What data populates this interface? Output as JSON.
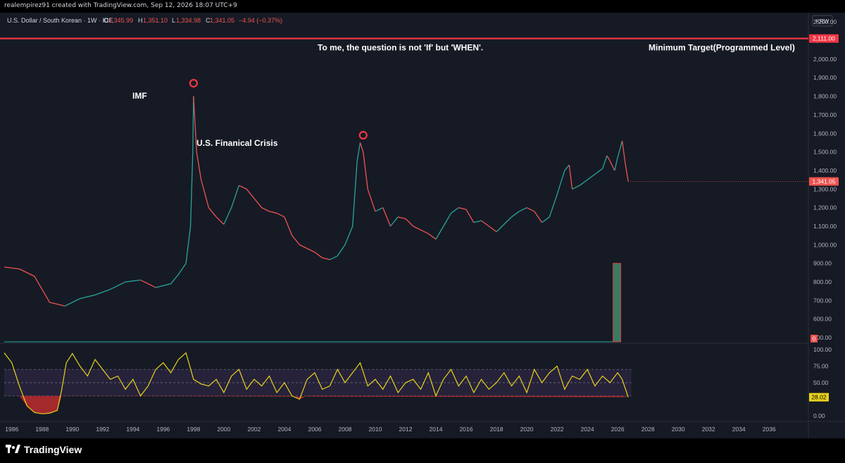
{
  "header": {
    "creator": "realempirez91 created with TradingView.com, Sep 12, 2026 18:07 UTC+9"
  },
  "legend": {
    "symbol": "U.S. Dollar / South Korean · 1W · ICE",
    "o_label": "O",
    "o_value": "1,345.99",
    "h_label": "H",
    "h_value": "1,351.10",
    "l_label": "L",
    "l_value": "1,334.98",
    "c_label": "C",
    "c_value": "1,341.05",
    "change": "−4.94 (−0.37%)"
  },
  "currency_badge": "KRW",
  "footer": {
    "brand": "TradingView"
  },
  "colors": {
    "up": "#26a69a",
    "down": "#ef5350",
    "target_line": "#f23645",
    "rsi_line": "#e8d21d",
    "rsi_band": "#2a2440",
    "background": "#161a25"
  },
  "chart_data": [
    {
      "type": "line",
      "name": "price",
      "price_axis": {
        "ticks": [
          "2,200.00",
          "2,100.00",
          "2,000.00",
          "1,900.00",
          "1,800.00",
          "1,700.00",
          "1,600.00",
          "1,500.00",
          "1,400.00",
          "1,300.00",
          "1,200.00",
          "1,100.00",
          "1,000.00",
          "900.00",
          "800.00",
          "700.00",
          "600.00",
          "500.00"
        ],
        "ylim": [
          470,
          2250
        ]
      },
      "time_axis": {
        "ticks": [
          "1986",
          "1988",
          "1990",
          "1992",
          "1994",
          "1996",
          "1998",
          "2000",
          "2002",
          "2004",
          "2006",
          "2008",
          "2010",
          "2012",
          "2014",
          "2016",
          "2018",
          "2020",
          "2022",
          "2024",
          "2026",
          "2028",
          "2030",
          "2032",
          "2034",
          "2036"
        ],
        "xlim": [
          1985.5,
          2038.5
        ]
      },
      "x": [
        1985.5,
        1986.5,
        1987.5,
        1988.0,
        1988.5,
        1989.5,
        1990.5,
        1991.5,
        1992.5,
        1993.5,
        1994.5,
        1995.5,
        1996.5,
        1997.0,
        1997.5,
        1997.8,
        1997.95,
        1998.0,
        1998.2,
        1998.5,
        1999.0,
        1999.5,
        2000.0,
        2000.5,
        2001.0,
        2001.5,
        2002.0,
        2002.5,
        2003.0,
        2003.5,
        2004.0,
        2004.5,
        2005.0,
        2005.5,
        2006.0,
        2006.5,
        2007.0,
        2007.5,
        2008.0,
        2008.5,
        2008.8,
        2009.0,
        2009.2,
        2009.5,
        2010.0,
        2010.5,
        2011.0,
        2011.5,
        2012.0,
        2012.5,
        2013.0,
        2013.5,
        2014.0,
        2014.5,
        2015.0,
        2015.5,
        2016.0,
        2016.5,
        2017.0,
        2017.5,
        2018.0,
        2018.5,
        2019.0,
        2019.5,
        2020.0,
        2020.5,
        2021.0,
        2021.5,
        2022.0,
        2022.5,
        2022.8,
        2023.0,
        2023.5,
        2024.0,
        2024.5,
        2025.0,
        2025.3,
        2025.5,
        2025.8,
        2026.0,
        2026.3,
        2026.5,
        2026.7
      ],
      "values": [
        880,
        870,
        830,
        760,
        690,
        670,
        710,
        730,
        760,
        800,
        810,
        770,
        790,
        840,
        900,
        1100,
        1500,
        1800,
        1500,
        1350,
        1200,
        1150,
        1110,
        1200,
        1320,
        1300,
        1250,
        1200,
        1180,
        1170,
        1150,
        1050,
        1000,
        980,
        960,
        930,
        920,
        940,
        1000,
        1100,
        1450,
        1550,
        1500,
        1300,
        1180,
        1200,
        1100,
        1150,
        1140,
        1100,
        1080,
        1060,
        1030,
        1100,
        1170,
        1200,
        1190,
        1120,
        1130,
        1100,
        1070,
        1110,
        1150,
        1180,
        1200,
        1180,
        1120,
        1150,
        1270,
        1400,
        1430,
        1300,
        1320,
        1350,
        1380,
        1410,
        1480,
        1450,
        1400,
        1470,
        1560,
        1440,
        1341
      ],
      "annotations": [
        "IMF",
        "U.S. Finanical Crisis",
        "To me, the question is not 'If' but 'WHEN'.",
        "Minimum Target(Programmed Level)"
      ],
      "target_level": 2111,
      "target_label": "2,111.00",
      "last_price": 1341.05,
      "last_price_label": "1,341.05",
      "volume_box": {
        "x_start": 2025.7,
        "x_end": 2026.2,
        "top": 900
      },
      "volume_label": "0"
    },
    {
      "type": "line",
      "name": "rsi",
      "ylim": [
        0,
        100
      ],
      "ticks": [
        "100.00",
        "75.00",
        "50.00",
        "25.00",
        "0.00"
      ],
      "bands": [
        30,
        50,
        70
      ],
      "last_value": 28.02,
      "last_label": "28.02",
      "x": [
        1985.5,
        1986.0,
        1986.5,
        1987.0,
        1987.5,
        1988.0,
        1988.5,
        1989.0,
        1989.3,
        1989.6,
        1990.0,
        1990.5,
        1991.0,
        1991.5,
        1992.0,
        1992.5,
        1993.0,
        1993.5,
        1994.0,
        1994.5,
        1995.0,
        1995.5,
        1996.0,
        1996.5,
        1997.0,
        1997.5,
        1998.0,
        1998.5,
        1999.0,
        1999.5,
        2000.0,
        2000.5,
        2001.0,
        2001.5,
        2002.0,
        2002.5,
        2003.0,
        2003.5,
        2004.0,
        2004.5,
        2005.0,
        2005.5,
        2006.0,
        2006.5,
        2007.0,
        2007.5,
        2008.0,
        2008.5,
        2009.0,
        2009.5,
        2010.0,
        2010.5,
        2011.0,
        2011.5,
        2012.0,
        2012.5,
        2013.0,
        2013.5,
        2014.0,
        2014.5,
        2015.0,
        2015.5,
        2016.0,
        2016.5,
        2017.0,
        2017.5,
        2018.0,
        2018.5,
        2019.0,
        2019.5,
        2020.0,
        2020.5,
        2021.0,
        2021.5,
        2022.0,
        2022.5,
        2023.0,
        2023.5,
        2024.0,
        2024.5,
        2025.0,
        2025.5,
        2026.0,
        2026.3,
        2026.7
      ],
      "values": [
        95,
        80,
        45,
        15,
        5,
        3,
        4,
        8,
        40,
        80,
        94,
        75,
        60,
        85,
        70,
        55,
        60,
        40,
        55,
        30,
        45,
        70,
        80,
        65,
        85,
        95,
        55,
        48,
        45,
        55,
        35,
        60,
        70,
        40,
        55,
        45,
        60,
        35,
        50,
        30,
        25,
        55,
        65,
        40,
        45,
        70,
        50,
        65,
        80,
        45,
        55,
        40,
        60,
        35,
        50,
        55,
        40,
        65,
        30,
        55,
        70,
        45,
        60,
        35,
        55,
        40,
        50,
        65,
        45,
        60,
        35,
        70,
        50,
        65,
        75,
        40,
        60,
        55,
        70,
        45,
        60,
        50,
        65,
        55,
        28
      ]
    }
  ]
}
